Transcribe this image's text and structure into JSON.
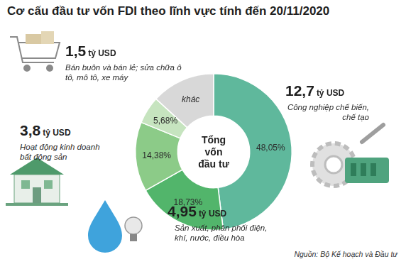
{
  "chart_data": {
    "type": "doughnut",
    "title": "Cơ cấu đầu tư vốn FDI theo lĩnh vực tính đến 20/11/2020",
    "categories": [
      "Công nghiệp chế biến, chế tạo",
      "Sản xuất, phân phối điện, khí, nước, điều hòa",
      "Hoạt động kinh doanh bất động sản",
      "Bán buôn và bán lẻ; sửa chữa ô tô, mô tô, xe máy",
      "khác"
    ],
    "values": [
      48.05,
      18.73,
      14.38,
      5.68,
      13.16
    ],
    "value_labels": [
      "48,05%",
      "18,73%",
      "14,38%",
      "5,68%",
      null
    ],
    "colors": [
      "#5fb89c",
      "#52b56b",
      "#8ccb88",
      "#c6e4bf",
      "#d8d8d8"
    ],
    "data_labels": true,
    "capital_values": [
      12.7,
      4.95,
      3.8,
      1.5,
      null
    ],
    "capital_value_labels": [
      "12,7",
      "4,95",
      "3,8",
      "1,5",
      null
    ],
    "capital_unit": "tỷ USD",
    "center_text": [
      "Tổng",
      "vốn",
      "đầu tư"
    ],
    "source": "Nguồn: Bộ Kế hoạch và Đầu tư"
  }
}
